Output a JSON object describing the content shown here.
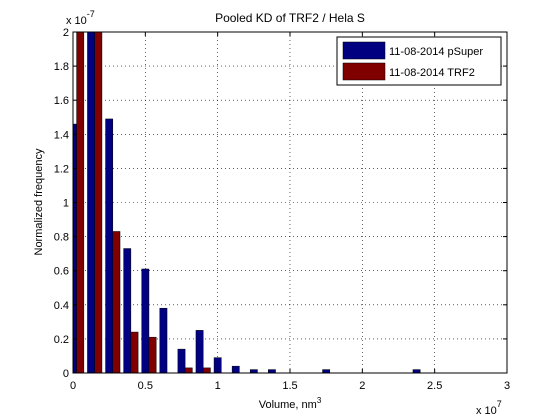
{
  "chart_data": {
    "type": "bar",
    "title": "Pooled KD of TRF2 / Hela S",
    "xlabel_main": "Volume, nm",
    "xlabel_sup": "3",
    "ylabel": "Normalized frequency",
    "x_multiplier_base": "x 10",
    "x_multiplier_exp": "7",
    "y_multiplier_base": "x 10",
    "y_multiplier_exp": "-7",
    "xlim": [
      0,
      3
    ],
    "ylim": [
      0,
      2
    ],
    "xticks": [
      0,
      0.5,
      1,
      1.5,
      2,
      2.5,
      3
    ],
    "xtick_labels": [
      "0",
      "0.5",
      "1",
      "1.5",
      "2",
      "2.5",
      "3"
    ],
    "yticks": [
      0,
      0.2,
      0.4,
      0.6,
      0.8,
      1,
      1.2,
      1.4,
      1.6,
      1.8,
      2
    ],
    "ytick_labels": [
      "0",
      "0.2",
      "0.4",
      "0.6",
      "0.8",
      "1",
      "1.2",
      "1.4",
      "1.6",
      "1.8",
      "2"
    ],
    "grid": true,
    "legend_position": "top-right",
    "bin_centers": [
      0.025,
      0.15,
      0.275,
      0.4,
      0.525,
      0.65,
      0.775,
      0.9,
      1.025,
      1.15,
      1.275,
      1.4,
      1.525,
      1.65,
      1.775,
      1.9,
      2.025,
      2.15,
      2.275,
      2.4,
      2.525,
      2.65,
      2.775,
      2.9
    ],
    "series": [
      {
        "name": "11-08-2014 pSuper",
        "color": "#000080",
        "values": [
          1.46,
          2.0,
          1.49,
          0.73,
          0.61,
          0.38,
          0.14,
          0.25,
          0.09,
          0.04,
          0.02,
          0.02,
          0,
          0,
          0.02,
          0,
          0,
          0,
          0,
          0.02,
          0,
          0,
          0,
          0
        ]
      },
      {
        "name": "11-08-2014 TRF2",
        "color": "#800000",
        "values": [
          2.0,
          2.0,
          0.83,
          0.24,
          0.21,
          0,
          0.03,
          0.03,
          0,
          0,
          0,
          0,
          0,
          0,
          0,
          0,
          0,
          0,
          0,
          0,
          0,
          0,
          0,
          0
        ]
      }
    ]
  }
}
